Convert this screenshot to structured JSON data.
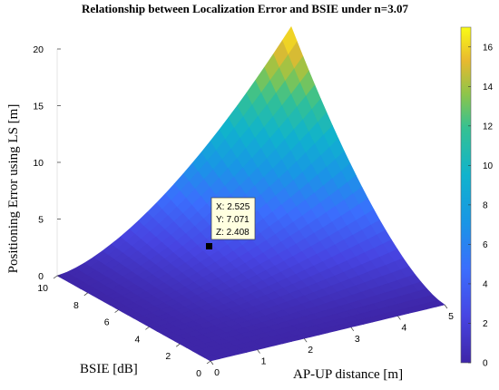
{
  "chart_data": {
    "type": "surface",
    "title": "Relationship between Localization Error and BSIE under n=3.07",
    "xlabel": "AP-UP distance [m]",
    "ylabel": "BSIE [dB]",
    "zlabel": "Positioning Error using LS [m]",
    "xlim": [
      0,
      5
    ],
    "ylim": [
      0,
      10
    ],
    "zlim": [
      0,
      20
    ],
    "x_ticks": [
      "0",
      "1",
      "2",
      "3",
      "4",
      "5"
    ],
    "y_ticks": [
      "0",
      "2",
      "4",
      "6",
      "8",
      "10"
    ],
    "z_ticks": [
      "0",
      "5",
      "10",
      "15",
      "20"
    ],
    "colormap": "parula",
    "colorbar": {
      "range": [
        0,
        17
      ],
      "ticks": [
        "0",
        "2",
        "4",
        "6",
        "8",
        "10",
        "12",
        "14",
        "16"
      ]
    },
    "corner_values": [
      {
        "x": 0,
        "y": 0,
        "z": 0
      },
      {
        "x": 5,
        "y": 0,
        "z": 0
      },
      {
        "x": 0,
        "y": 10,
        "z": 0
      },
      {
        "x": 5,
        "y": 10,
        "z": 17
      }
    ],
    "datatip": {
      "x": 2.525,
      "y": 7.071,
      "z": 2.408,
      "lines": [
        "X: 2.525",
        "Y: 7.071",
        "Z: 2.408"
      ]
    },
    "grid": false
  }
}
